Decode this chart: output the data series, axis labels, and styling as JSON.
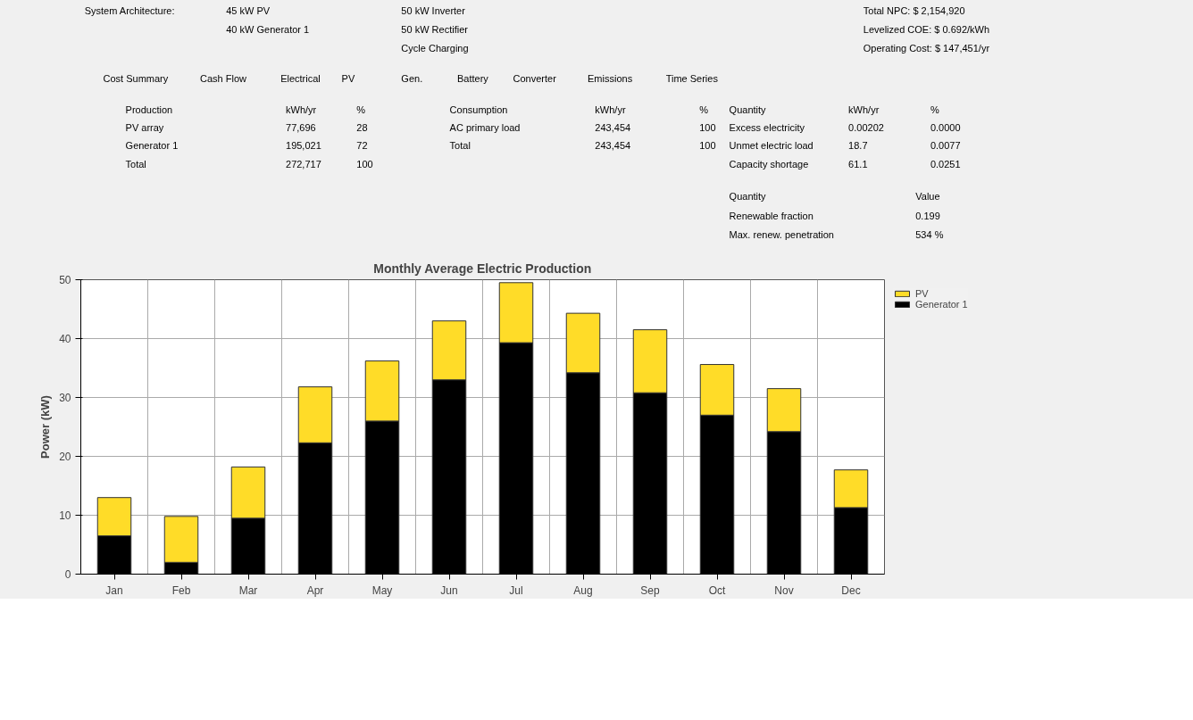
{
  "chart_data": {
    "type": "bar",
    "title": "Monthly Average Electric Production",
    "ylabel": "Power (kW)",
    "categories": [
      "Jan",
      "Feb",
      "Mar",
      "Apr",
      "May",
      "Jun",
      "Jul",
      "Aug",
      "Sep",
      "Oct",
      "Nov",
      "Dec"
    ],
    "stacked": true,
    "series": [
      {
        "name": "Generator 1",
        "color": "#000000",
        "values": [
          6.5,
          2,
          9.5,
          22.3,
          26,
          33,
          39.3,
          34.2,
          30.8,
          27,
          24.2,
          11.3
        ]
      },
      {
        "name": "PV",
        "color": "#ffdc28",
        "values": [
          6.5,
          7.8,
          8.7,
          9.5,
          10.2,
          10,
          10.2,
          10.1,
          10.7,
          8.6,
          7.3,
          6.4
        ]
      }
    ],
    "ylim": [
      0,
      50
    ],
    "yticks": [
      0,
      10,
      20,
      30,
      40,
      50
    ],
    "grid": true,
    "legend": "top right",
    "annotations": [
      "System Architecture:",
      "45 kW PV",
      "40 kW Generator 1",
      "50 kW Inverter",
      "50 kW Rectifier",
      "Cycle Charging",
      "Total NPC: $ 2,154,920",
      "Levelized COE: $ 0.692/kWh",
      "Operating Cost: $ 147,451/yr",
      "Cost Summary",
      "Cash Flow",
      "Electrical",
      "PV",
      "Gen.",
      "Battery",
      "Converter",
      "Emissions",
      "Time Series",
      "Production",
      "kWh/yr",
      "%",
      "PV array",
      "77,696",
      "28",
      "Generator 1",
      "195,021",
      "72",
      "Total",
      "272,717",
      "100",
      "Consumption",
      "kWh/yr",
      "%",
      "AC primary load",
      "243,454",
      "100",
      "Total",
      "243,454",
      "100",
      "Quantity",
      "kWh/yr",
      "%",
      "Excess electricity",
      "0.00202",
      "0.0000",
      "Unmet electric load",
      "18.7",
      "0.0077",
      "Capacity shortage",
      "61.1",
      "0.0251",
      "Quantity",
      "Value",
      "Renewable fraction",
      "0.199",
      "Max. renew. penetration",
      "534 %"
    ]
  }
}
